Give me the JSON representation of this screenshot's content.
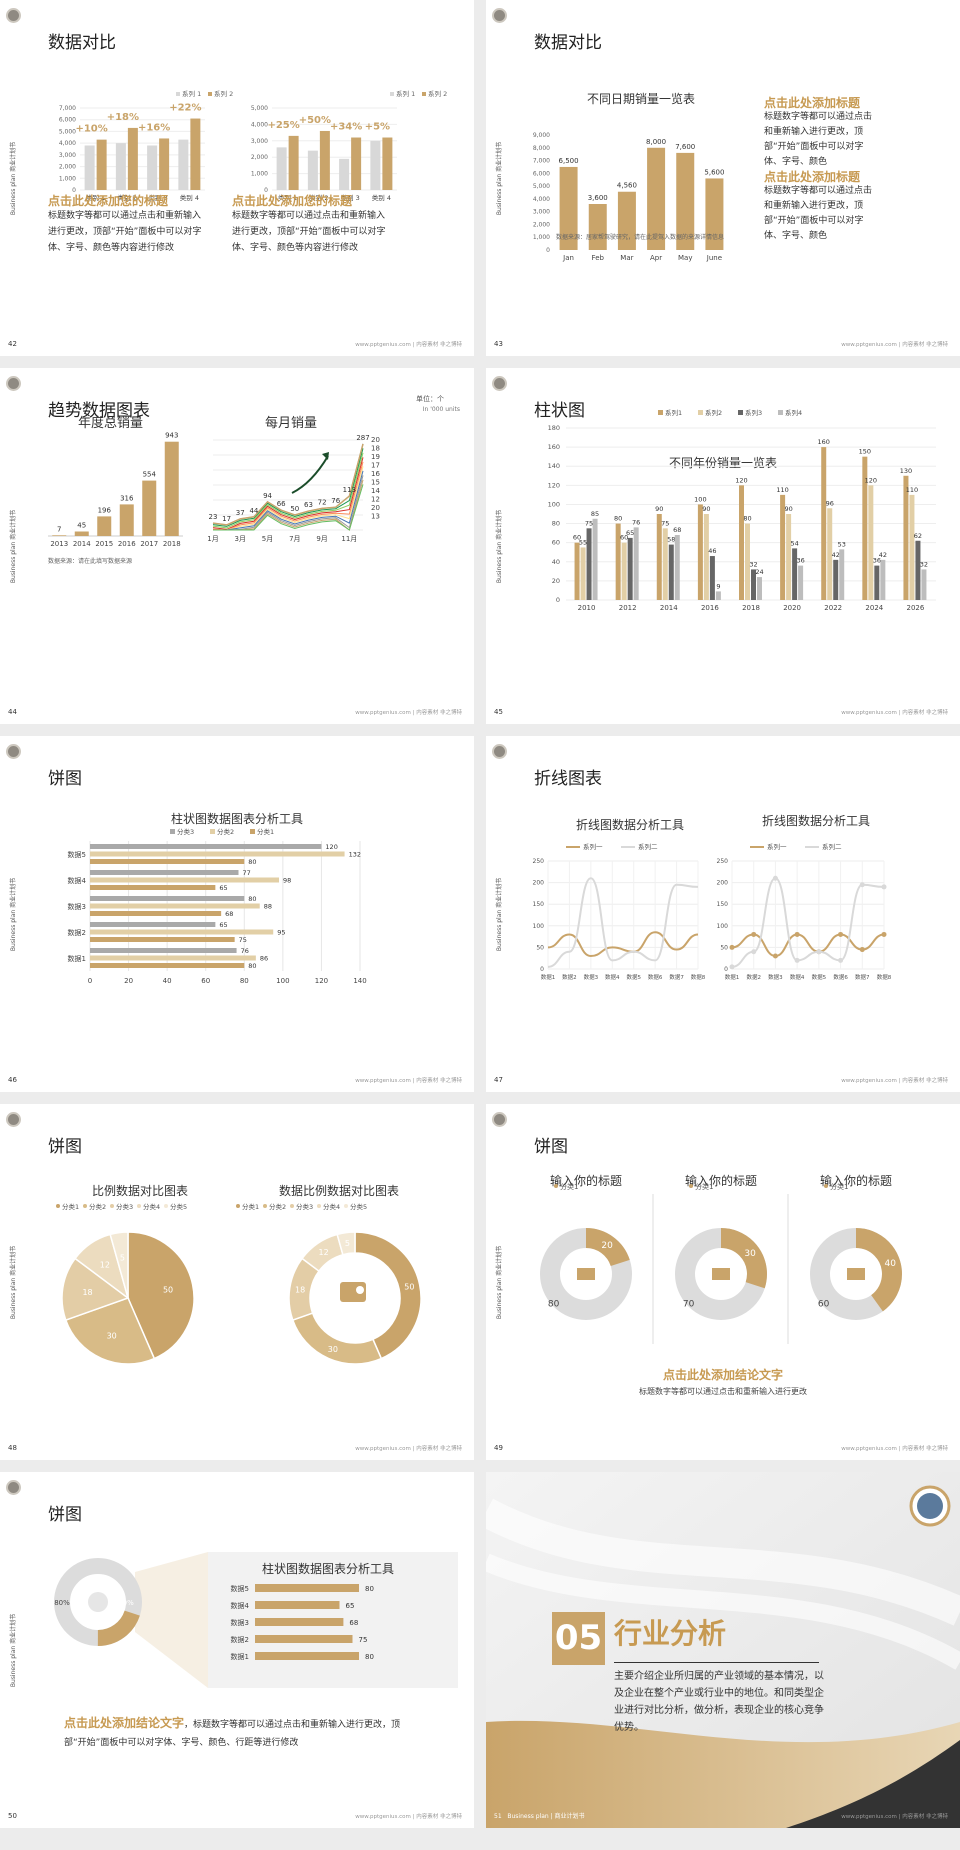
{
  "footer": "www.pptgenius.com | 内容素材 非之博特",
  "side_label": "Business plan 商业计划书",
  "slides": [
    {
      "num": "42",
      "title": "数据对比"
    },
    {
      "num": "43",
      "title": "数据对比"
    },
    {
      "num": "44",
      "title": "趋势数据图表"
    },
    {
      "num": "45",
      "title": "柱状图"
    },
    {
      "num": "46",
      "title": "饼图"
    },
    {
      "num": "47",
      "title": "折线图表"
    },
    {
      "num": "48",
      "title": "饼图"
    },
    {
      "num": "49",
      "title": "饼图"
    },
    {
      "num": "50",
      "title": "饼图"
    },
    {
      "num": "51"
    }
  ],
  "s42": {
    "heading": "点击此处添加您的标题",
    "body": "标题数字等都可以通过点击和重新输入进行更改，顶部“开始”面板中可以对字体、字号、颜色等内容进行修改",
    "legend": [
      "系列 1",
      "系列 2"
    ],
    "left_badges": [
      "+10%",
      "+18%",
      "+16%",
      "+22%"
    ],
    "right_badges": [
      "+25%",
      "+50%",
      "+34%",
      "+5%"
    ]
  },
  "s43": {
    "chart_title": "不同日期销量一览表",
    "source": "数据来源：居家帮驾驶研究，请在此提驾入数据的来源详情信息",
    "h1": "点击此处添加标题",
    "b1": "标题数字等都可以通过点击和重新输入进行更改，顶部“开始”面板中可以对字体、字号、颜色",
    "h2": "点击此处添加标题",
    "b2": "标题数字等都可以通过点击和重新输入进行更改，顶部“开始”面板中可以对字体、字号、颜色"
  },
  "s44": {
    "left_title": "年度总销量",
    "right_title": "每月销量",
    "unit1": "单位：个",
    "unit2": "In '000 units",
    "source": "数据来源：请在此填写数据来源",
    "right_end": [
      "20",
      "18",
      "19",
      "17",
      "16",
      "15",
      "14",
      "12",
      "20",
      "13"
    ]
  },
  "s45": {
    "chart_title": "不同年份销量一览表"
  },
  "s46": {
    "chart_title": "柱状图数据图表分析工具"
  },
  "s47": {
    "left_title": "折线图数据分析工具",
    "right_title": "折线图数据分析工具"
  },
  "s48": {
    "left_title": "比例数据对比图表",
    "right_title": "数据比例数据对比图表",
    "legend": [
      "分类1",
      "分类2",
      "分类3",
      "分类4",
      "分类5"
    ]
  },
  "s49": {
    "titles": [
      "输入你的标题",
      "输入你的标题",
      "输入你的标题"
    ],
    "sub": "分类1",
    "conclusion": "点击此处添加结论文字",
    "note": "标题数字等都可以通过点击和重新输入进行更改"
  },
  "s50": {
    "panel_title": "柱状图数据图表分析工具",
    "conclusion": "点击此处添加结论文字",
    "body": "，标题数字等都可以通过点击和重新输入进行更改，顶部“开始”面板中可以对字体、字号、颜色、行距等进行修改",
    "left_pct": "80%",
    "right_pct": "20%"
  },
  "s51": {
    "num": "05",
    "title": "行业分析",
    "body": "主要介绍企业所归属的产业领域的基本情况，以及企业在整个产业或行业中的地位。和同类型企业进行对比分析，做分析，表现企业的核心竞争优势。",
    "footer": "Business plan | 商业计划书"
  },
  "chart_data": [
    {
      "type": "bar",
      "id": "s42-left",
      "categories": [
        "类别 1",
        "类别 2",
        "类别 3",
        "类别 4"
      ],
      "series": [
        {
          "name": "系列 1",
          "values": [
            3800,
            4000,
            3800,
            4300
          ]
        },
        {
          "name": "系列 2",
          "values": [
            4300,
            5300,
            4400,
            6100
          ]
        }
      ],
      "ylim": [
        0,
        7000
      ],
      "yticks": [
        0,
        1000,
        2000,
        3000,
        4000,
        5000,
        6000,
        7000
      ]
    },
    {
      "type": "bar",
      "id": "s42-right",
      "categories": [
        "类别 1",
        "类别 2",
        "类别 3",
        "类别 4"
      ],
      "series": [
        {
          "name": "系列 1",
          "values": [
            2600,
            2400,
            1900,
            3000
          ]
        },
        {
          "name": "系列 2",
          "values": [
            3300,
            3600,
            3200,
            3200
          ]
        }
      ],
      "ylim": [
        0,
        5000
      ],
      "yticks": [
        0,
        1000,
        2000,
        3000,
        4000,
        5000
      ]
    },
    {
      "type": "bar",
      "id": "s43",
      "title": "不同日期销量一览表",
      "categories": [
        "Jan",
        "Feb",
        "Mar",
        "Apr",
        "May",
        "June"
      ],
      "values": [
        6500,
        3600,
        4560,
        8000,
        7600,
        5600
      ],
      "ylim": [
        0,
        9000
      ],
      "yticks": [
        0,
        1000,
        2000,
        3000,
        4000,
        5000,
        6000,
        7000,
        8000,
        9000
      ]
    },
    {
      "type": "bar",
      "id": "s44-left",
      "title": "年度总销量",
      "categories": [
        "2013",
        "2014",
        "2015",
        "2016",
        "2017",
        "2018"
      ],
      "values": [
        7,
        45,
        196,
        316,
        554,
        943
      ]
    },
    {
      "type": "line",
      "id": "s44-right",
      "title": "每月销量",
      "x": [
        "1月",
        "2月",
        "3月",
        "4月",
        "5月",
        "6月",
        "7月",
        "8月",
        "9月",
        "10月",
        "11月",
        "12月"
      ],
      "values": [
        23,
        17,
        37,
        44,
        94,
        66,
        50,
        63,
        72,
        76,
        113,
        287
      ]
    },
    {
      "type": "bar",
      "id": "s45",
      "title": "不同年份销量一览表",
      "categories": [
        "2010",
        "2012",
        "2014",
        "2016",
        "2018",
        "2020",
        "2022",
        "2024",
        "2026"
      ],
      "series": [
        {
          "name": "系列1",
          "values": [
            60,
            80,
            90,
            100,
            120,
            110,
            160,
            150,
            130
          ]
        },
        {
          "name": "系列2",
          "values": [
            55,
            60,
            75,
            90,
            80,
            90,
            96,
            120,
            110
          ]
        },
        {
          "name": "系列3",
          "values": [
            75,
            65,
            58,
            46,
            32,
            54,
            42,
            36,
            62
          ]
        },
        {
          "name": "系列4",
          "values": [
            85,
            76,
            68,
            9,
            24,
            36,
            53,
            42,
            32
          ]
        }
      ],
      "ylim": [
        0,
        180
      ],
      "yticks": [
        0,
        20,
        40,
        60,
        80,
        100,
        120,
        140,
        160,
        180
      ]
    },
    {
      "type": "bar",
      "id": "s46",
      "title": "柱状图数据图表分析工具",
      "categories": [
        "数据5",
        "数据4",
        "数据3",
        "数据2",
        "数据1"
      ],
      "series": [
        {
          "name": "分类3",
          "values": [
            120,
            77,
            80,
            65,
            76
          ]
        },
        {
          "name": "分类2",
          "values": [
            132,
            98,
            88,
            95,
            86
          ]
        },
        {
          "name": "分类1",
          "values": [
            80,
            65,
            68,
            75,
            80
          ]
        }
      ],
      "xlim": [
        0,
        140
      ],
      "xticks": [
        0,
        20,
        40,
        60,
        80,
        100,
        120,
        140
      ]
    },
    {
      "type": "line",
      "id": "s47-left",
      "title": "折线图数据分析工具",
      "categories": [
        "数据1",
        "数据2",
        "数据3",
        "数据4",
        "数据5",
        "数据6",
        "数据7",
        "数据8"
      ],
      "series": [
        {
          "name": "系列一",
          "values": [
            50,
            80,
            30,
            50,
            40,
            85,
            45,
            80
          ]
        },
        {
          "name": "系列二",
          "values": [
            5,
            40,
            210,
            20,
            40,
            20,
            195,
            190
          ]
        }
      ],
      "ylim": [
        0,
        250
      ],
      "yticks": [
        0,
        50,
        100,
        150,
        200,
        250
      ]
    },
    {
      "type": "line",
      "id": "s47-right",
      "title": "折线图数据分析工具",
      "categories": [
        "数据1",
        "数据2",
        "数据3",
        "数据4",
        "数据5",
        "数据6",
        "数据7",
        "数据8"
      ],
      "series": [
        {
          "name": "系列一",
          "values": [
            50,
            80,
            30,
            80,
            40,
            80,
            45,
            80
          ]
        },
        {
          "name": "系列二",
          "values": [
            5,
            40,
            210,
            20,
            40,
            20,
            195,
            190
          ]
        }
      ],
      "ylim": [
        0,
        250
      ],
      "yticks": [
        0,
        50,
        100,
        150,
        200,
        250
      ]
    },
    {
      "type": "pie",
      "id": "s48-left",
      "title": "比例数据对比图表",
      "labels": [
        "分类1",
        "分类2",
        "分类3",
        "分类4",
        "分类5"
      ],
      "values": [
        50,
        30,
        18,
        12,
        5
      ]
    },
    {
      "type": "pie",
      "id": "s48-right",
      "title": "数据比例数据对比图表",
      "labels": [
        "分类1",
        "分类2",
        "分类3",
        "分类4",
        "分类5"
      ],
      "values": [
        50,
        30,
        18,
        12,
        5
      ]
    },
    {
      "type": "pie",
      "id": "s49-1",
      "labels": [
        "分类1",
        ""
      ],
      "values": [
        20,
        80
      ]
    },
    {
      "type": "pie",
      "id": "s49-2",
      "labels": [
        "分类1",
        ""
      ],
      "values": [
        30,
        70
      ]
    },
    {
      "type": "pie",
      "id": "s49-3",
      "labels": [
        "分类1",
        ""
      ],
      "values": [
        40,
        60
      ]
    },
    {
      "type": "bar",
      "id": "s50",
      "title": "柱状图数据图表分析工具",
      "categories": [
        "数据5",
        "数据4",
        "数据3",
        "数据2",
        "数据1"
      ],
      "values": [
        80,
        65,
        68,
        75,
        80
      ],
      "xlim": [
        0,
        100
      ]
    }
  ]
}
